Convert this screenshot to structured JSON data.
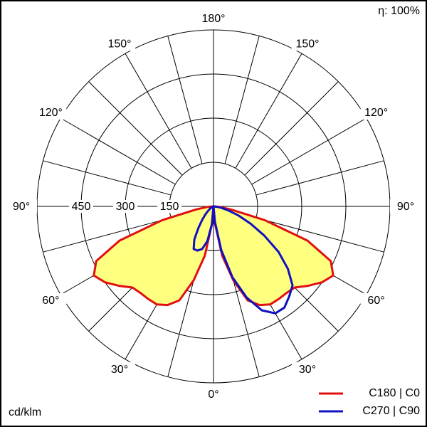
{
  "chart_data": {
    "type": "polar",
    "efficiency_label": "η: 100%",
    "unit_label": "cd/klm",
    "angles": [
      0,
      5,
      10,
      15,
      20,
      25,
      30,
      35,
      40,
      45,
      50,
      55,
      60,
      65,
      70,
      75,
      80,
      85,
      90
    ],
    "rlim": [
      0,
      600
    ],
    "rticks": [
      150,
      300,
      450
    ],
    "angle_ticks": [
      {
        "value": 0,
        "label": "0°"
      },
      {
        "value": 30,
        "label": "30°"
      },
      {
        "value": 60,
        "label": "60°"
      },
      {
        "value": 90,
        "label": "90°"
      },
      {
        "value": 120,
        "label": "120°"
      },
      {
        "value": 150,
        "label": "150°"
      },
      {
        "value": 180,
        "label": "180°"
      }
    ],
    "series": [
      {
        "name": "C180 | C0",
        "color": "#e01010",
        "fill": "#ffff80",
        "left": [
          0,
          60,
          170,
          260,
          340,
          370,
          385,
          385,
          385,
          390,
          420,
          450,
          470,
          440,
          340,
          180,
          60,
          20,
          0
        ],
        "right": [
          0,
          60,
          170,
          260,
          340,
          370,
          385,
          385,
          385,
          390,
          420,
          450,
          470,
          440,
          340,
          180,
          60,
          20,
          0
        ]
      },
      {
        "name": "C270 | C90",
        "color": "#1010c0",
        "left": [
          0,
          60,
          120,
          150,
          160,
          160,
          130,
          90,
          60,
          40,
          25,
          15,
          10,
          5,
          3,
          2,
          1,
          0,
          0
        ],
        "right": [
          0,
          50,
          150,
          250,
          330,
          390,
          420,
          420,
          400,
          380,
          330,
          270,
          200,
          140,
          90,
          50,
          25,
          10,
          0
        ]
      }
    ]
  }
}
